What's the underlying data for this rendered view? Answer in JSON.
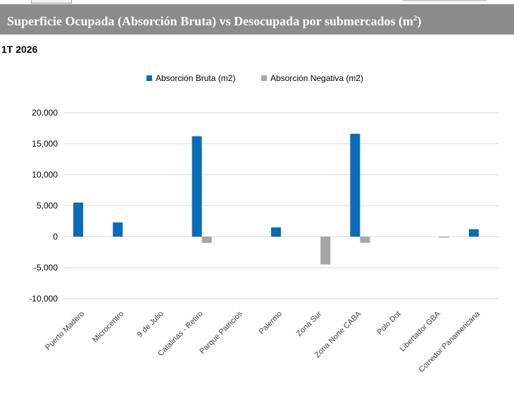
{
  "header": {
    "title": "Superficie Ocupada (Absorción Bruta) vs Desocupada por submercados (m",
    "title_sup": "2",
    "title_close": ")",
    "subtitle": "1T 2026"
  },
  "colors": {
    "title_bg": "#8c8c8c",
    "series_bruta": "#0a6bb8",
    "series_negativa": "#a6a6a6",
    "grid": "#d9d9d9"
  },
  "chart_data": {
    "type": "bar",
    "title": "",
    "xlabel": "",
    "ylabel": "",
    "ylim": [
      -10000,
      20000
    ],
    "yticks": [
      20000,
      15000,
      10000,
      5000,
      0,
      -5000,
      -10000
    ],
    "ytick_labels": [
      "20,000",
      "15,000",
      "10,000",
      "5,000",
      "0",
      "-5,000",
      "-10,000"
    ],
    "categories": [
      "Puerto Madero",
      "Microcentro",
      "9 de Julio",
      "Catalinas - Retiro",
      "Parque Patricios",
      "Palermo",
      "Zona Sur",
      "Zona Norte CABA",
      "Polo Dot",
      "Libertador GBA",
      "Corredor Panamericana"
    ],
    "series": [
      {
        "name": "Absorción Bruta (m2)",
        "values": [
          5500,
          2300,
          0,
          16200,
          0,
          1500,
          0,
          16600,
          0,
          0,
          1200
        ]
      },
      {
        "name": "Absorción Negativa (m2)",
        "values": [
          0,
          0,
          0,
          -1000,
          0,
          0,
          -4500,
          -1000,
          0,
          -150,
          0
        ]
      }
    ],
    "legend_position": "top-center",
    "grid": true
  }
}
